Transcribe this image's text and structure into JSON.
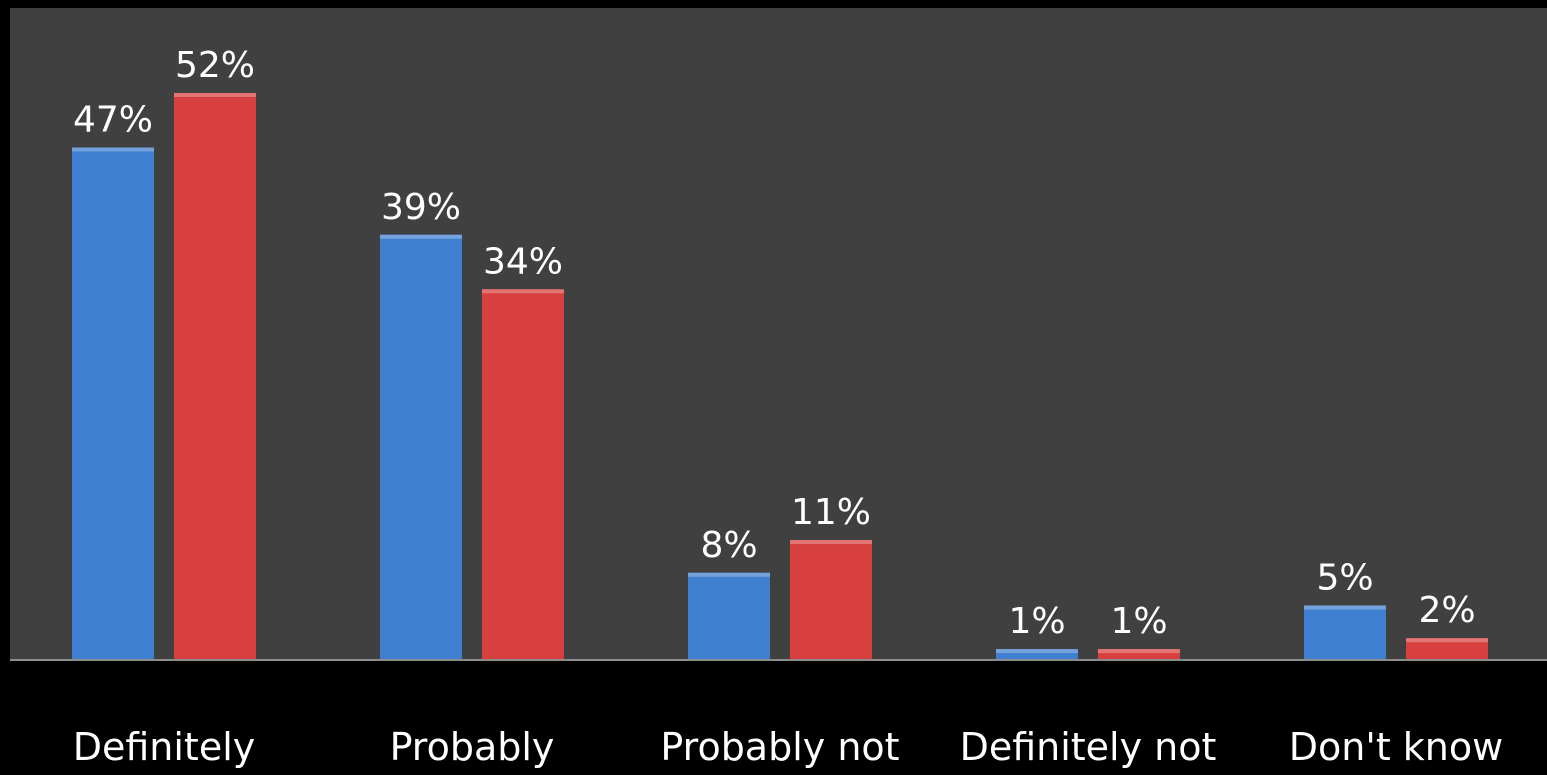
{
  "colors": {
    "background": "#000000",
    "plot_area": "#404040",
    "baseline": "#8c8c8c",
    "label_text": "#ffffff",
    "series_1": "#3f7fd0",
    "series_2": "#d84040"
  },
  "chart_data": {
    "type": "bar",
    "categories": [
      "Definitely",
      "Probably",
      "Probably not",
      "Definitely not",
      "Don't know"
    ],
    "series": [
      {
        "values": [
          47,
          39,
          8,
          1,
          5
        ],
        "labels": [
          "47%",
          "39%",
          "8%",
          "1%",
          "5%"
        ]
      },
      {
        "values": [
          52,
          34,
          11,
          1,
          2
        ],
        "labels": [
          "52%",
          "34%",
          "11%",
          "1%",
          "2%"
        ]
      }
    ],
    "ylim": [
      0,
      52
    ],
    "grid": false,
    "legend": "none",
    "xlabel": "",
    "ylabel": ""
  }
}
